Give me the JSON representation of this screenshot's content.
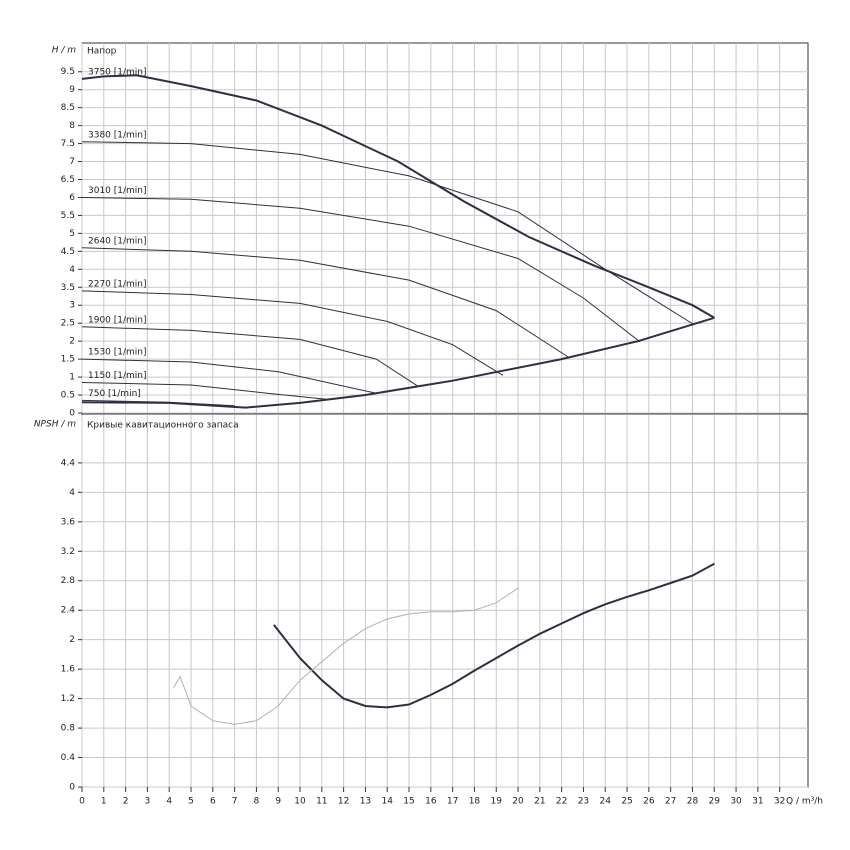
{
  "chart_data": [
    {
      "type": "line",
      "title": "Напор",
      "ylabel": "H / m",
      "ylim": [
        0,
        10.3
      ],
      "yticks": [
        0,
        0.5,
        1,
        1.5,
        2,
        2.5,
        3,
        3.5,
        4,
        4.5,
        5,
        5.5,
        6,
        6.5,
        7,
        7.5,
        8,
        8.5,
        9,
        9.5
      ],
      "grid": true,
      "series": [
        {
          "name": "3750 [1/min]",
          "color": "#2b3140",
          "width": 2,
          "x": [
            0,
            1,
            2.5,
            5,
            8,
            11,
            14.5,
            17.5,
            20.5,
            23.5,
            26,
            28,
            29
          ],
          "values": [
            9.3,
            9.37,
            9.4,
            9.1,
            8.7,
            8.0,
            7.0,
            5.9,
            4.9,
            4.1,
            3.5,
            3.0,
            2.65
          ]
        },
        {
          "name": "3380 [1/min]",
          "color": "#2b3140",
          "width": 1,
          "x": [
            0,
            5,
            10,
            15,
            20,
            24,
            28.1
          ],
          "values": [
            7.55,
            7.5,
            7.2,
            6.6,
            5.6,
            4.0,
            2.45
          ]
        },
        {
          "name": "3010 [1/min]",
          "color": "#2b3140",
          "width": 1,
          "x": [
            0,
            5,
            10,
            15,
            20,
            23,
            25.6
          ],
          "values": [
            6.0,
            5.95,
            5.7,
            5.2,
            4.3,
            3.2,
            1.98
          ]
        },
        {
          "name": "2640 [1/min]",
          "color": "#2b3140",
          "width": 1,
          "x": [
            0,
            5,
            10,
            15,
            19,
            22.3
          ],
          "values": [
            4.6,
            4.5,
            4.25,
            3.7,
            2.85,
            1.56
          ]
        },
        {
          "name": "2270 [1/min]",
          "color": "#2b3140",
          "width": 1,
          "x": [
            0,
            5,
            10,
            14,
            17,
            19.3
          ],
          "values": [
            3.4,
            3.3,
            3.05,
            2.55,
            1.9,
            1.05
          ]
        },
        {
          "name": "1900 [1/min]",
          "color": "#2b3140",
          "width": 1,
          "x": [
            0,
            5,
            10,
            13.5,
            15.4
          ],
          "values": [
            2.4,
            2.3,
            2.05,
            1.5,
            0.75
          ]
        },
        {
          "name": "1530 [1/min]",
          "color": "#2b3140",
          "width": 1,
          "x": [
            0,
            5,
            9,
            12,
            13.5
          ],
          "values": [
            1.5,
            1.42,
            1.15,
            0.75,
            0.55
          ]
        },
        {
          "name": "1150 [1/min]",
          "color": "#2b3140",
          "width": 1,
          "x": [
            0,
            5,
            8.5,
            11.2
          ],
          "values": [
            0.85,
            0.78,
            0.55,
            0.38
          ]
        },
        {
          "name": "750 [1/min]",
          "color": "#2b3140",
          "width": 1,
          "x": [
            0,
            4,
            7
          ],
          "values": [
            0.35,
            0.3,
            0.2
          ]
        },
        {
          "color": "#2b3140",
          "width": 2,
          "x": [
            0,
            4,
            7.5,
            10,
            13,
            17,
            22,
            25.5,
            29
          ],
          "values": [
            0.3,
            0.28,
            0.15,
            0.28,
            0.5,
            0.9,
            1.5,
            2.0,
            2.65
          ]
        }
      ]
    },
    {
      "type": "line",
      "title": "Кривые кавитационного запаса",
      "ylabel": "NPSH / m",
      "xlabel": "Q / m³/h",
      "xlim": [
        0,
        33.3
      ],
      "xticks": [
        0,
        1,
        2,
        3,
        4,
        5,
        6,
        7,
        8,
        9,
        10,
        11,
        12,
        13,
        14,
        15,
        16,
        17,
        18,
        19,
        20,
        21,
        22,
        23,
        24,
        25,
        26,
        27,
        28,
        29,
        30,
        31,
        32
      ],
      "ylim": [
        0,
        5.05
      ],
      "yticks": [
        0,
        0.4,
        0.8,
        1.2,
        1.6,
        2,
        2.4,
        2.8,
        3.2,
        3.6,
        4,
        4.4
      ],
      "grid": true,
      "series": [
        {
          "color": "#2b3140",
          "width": 2,
          "x": [
            8.8,
            10,
            11,
            12,
            13,
            14,
            15,
            16,
            17,
            18,
            19,
            20,
            21,
            22,
            23,
            24,
            25,
            26,
            27,
            28,
            29
          ],
          "values": [
            2.2,
            1.75,
            1.45,
            1.2,
            1.1,
            1.08,
            1.12,
            1.25,
            1.4,
            1.58,
            1.75,
            1.92,
            2.08,
            2.22,
            2.36,
            2.48,
            2.58,
            2.67,
            2.77,
            2.87,
            3.03
          ]
        },
        {
          "color": "#b0b0b0",
          "width": 1,
          "x": [
            4.2,
            4.5,
            5,
            6,
            7,
            8,
            9,
            10,
            11,
            12,
            13,
            14,
            15,
            16,
            17,
            18,
            19,
            20
          ],
          "values": [
            1.35,
            1.5,
            1.1,
            0.9,
            0.85,
            0.9,
            1.1,
            1.45,
            1.7,
            1.95,
            2.15,
            2.28,
            2.35,
            2.38,
            2.38,
            2.4,
            2.5,
            2.7
          ]
        }
      ]
    }
  ]
}
